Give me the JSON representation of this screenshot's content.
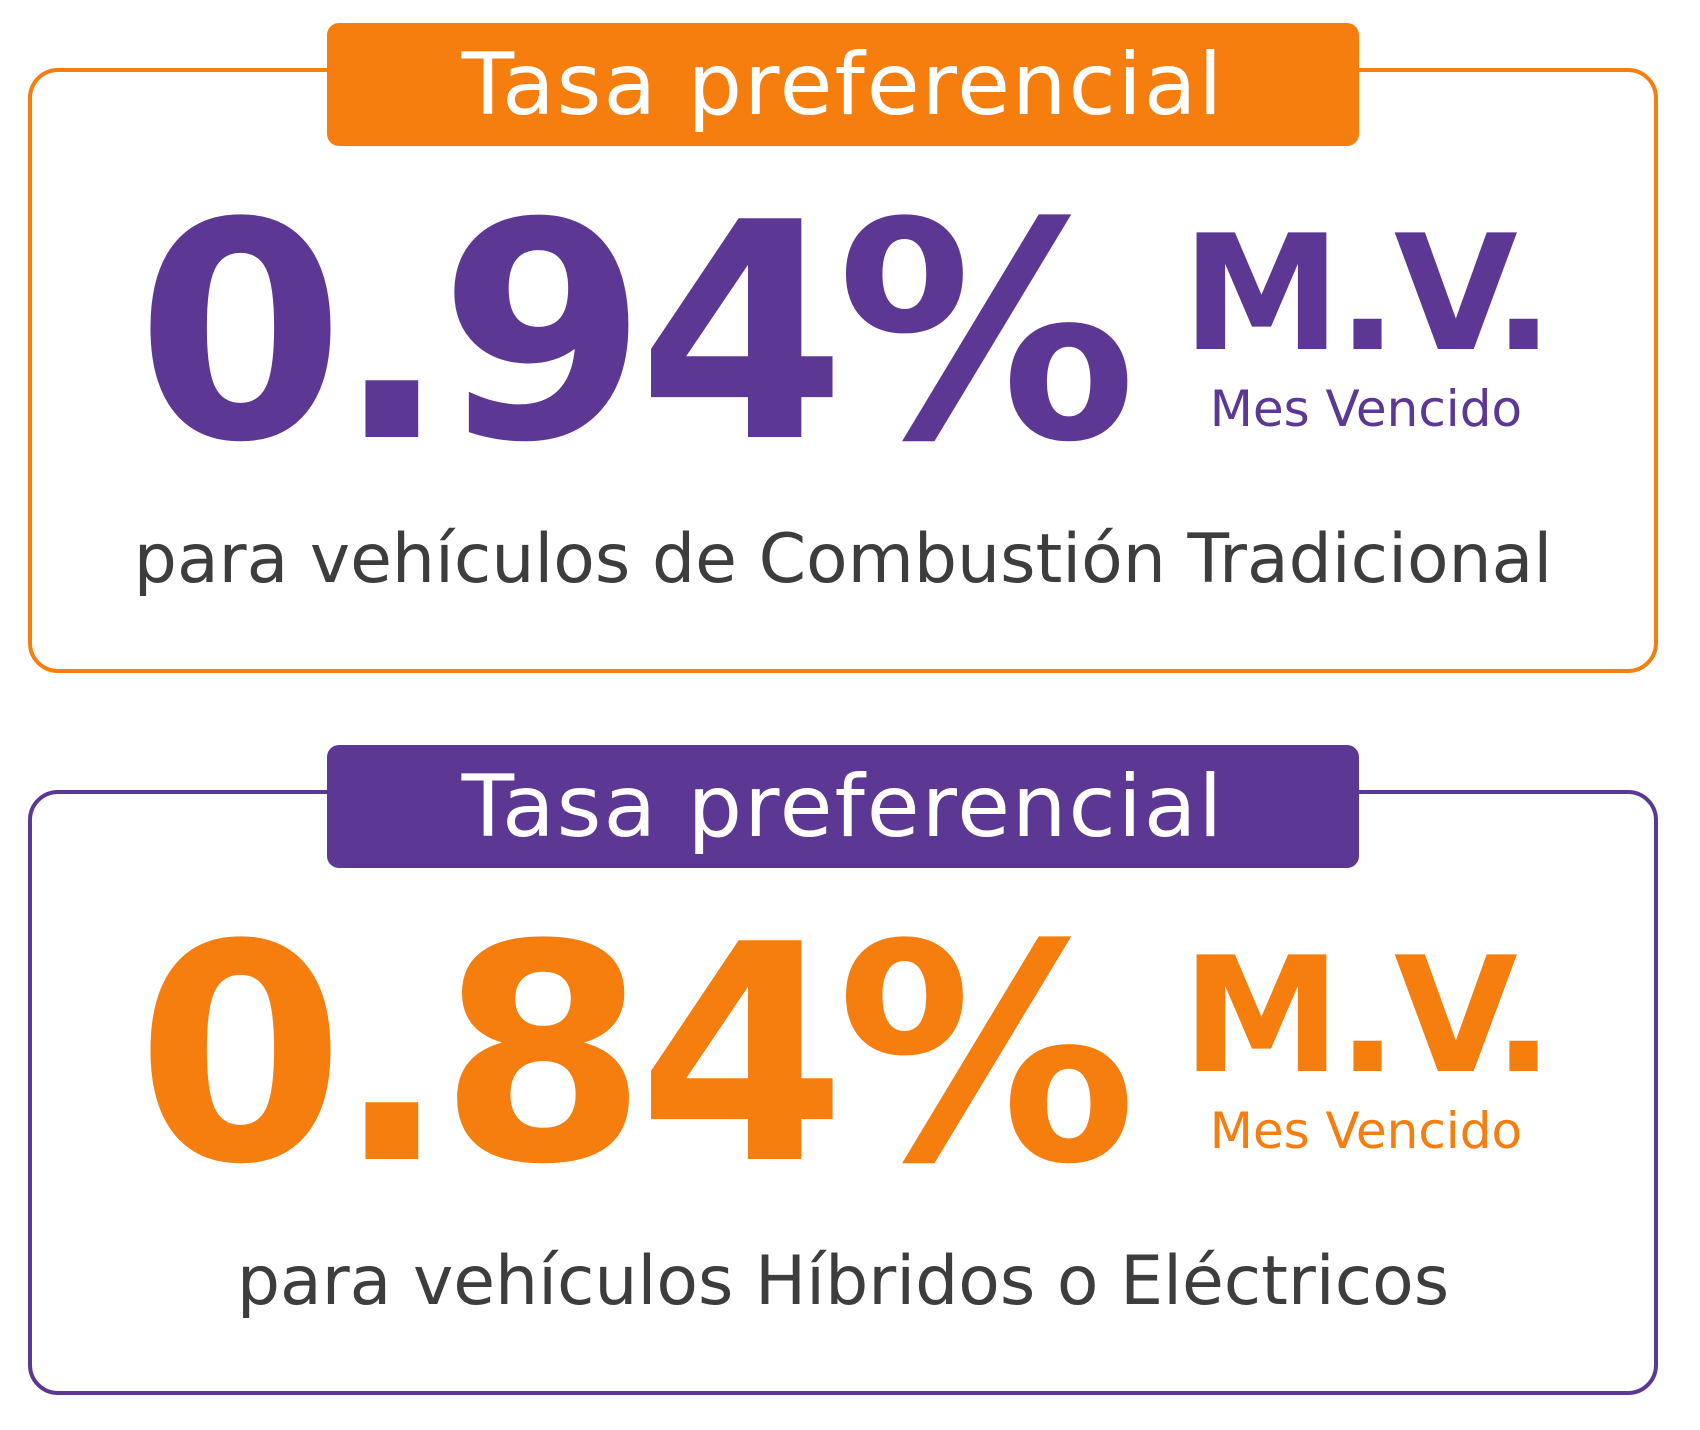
{
  "colors": {
    "orange": "#F57E0E",
    "purple": "#5C3894",
    "caption_text": "#3D3D3D",
    "banner_text": "#FFFFFF",
    "background": "#FFFFFF"
  },
  "cards": [
    {
      "banner_label": "Tasa preferencial",
      "rate_value": "0.94%",
      "period_abbr": "M.V.",
      "period_full": "Mes Vencido",
      "caption": "para vehículos de Combustión Tradicional",
      "accent_color": "#F57E0E",
      "rate_color": "#5C3894"
    },
    {
      "banner_label": "Tasa preferencial",
      "rate_value": "0.84%",
      "period_abbr": "M.V.",
      "period_full": "Mes Vencido",
      "caption": "para vehículos Híbridos o Eléctricos",
      "accent_color": "#5C3894",
      "rate_color": "#F57E0E"
    }
  ]
}
